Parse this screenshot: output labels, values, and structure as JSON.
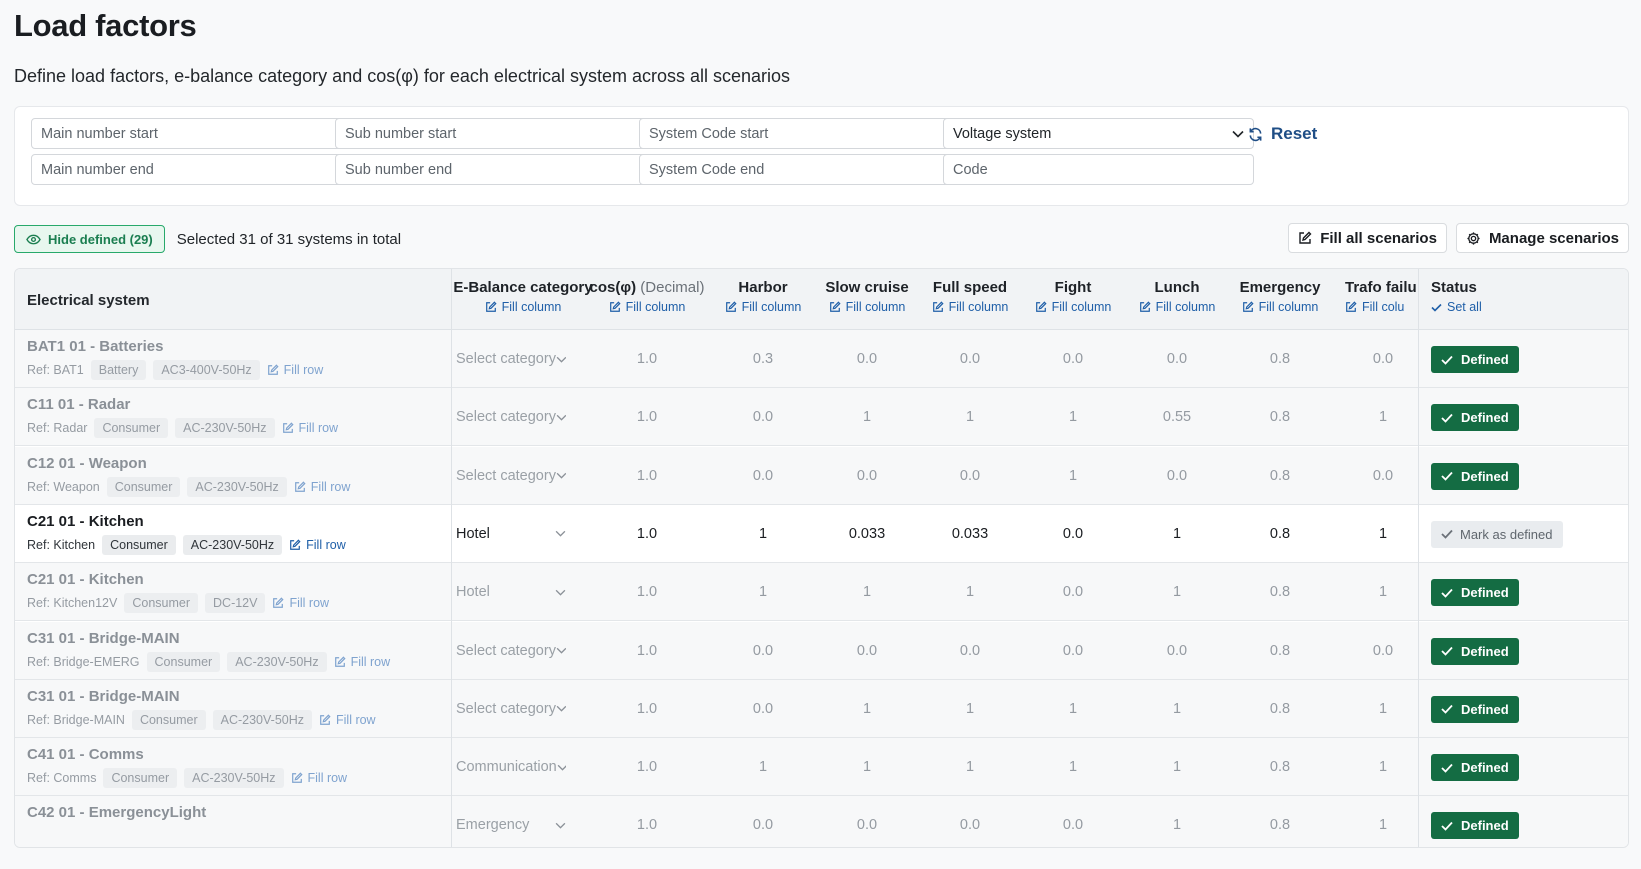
{
  "page": {
    "title": "Load factors",
    "subtitle": "Define load factors, e-balance category and cos(φ) for each electrical system across all scenarios"
  },
  "filters": {
    "main_start": "Main number start",
    "sub_start": "Sub number start",
    "code_start": "System Code start",
    "voltage": "Voltage system",
    "main_end": "Main number end",
    "sub_end": "Sub number end",
    "code_end": "System Code end",
    "code": "Code",
    "reset": "Reset"
  },
  "toolbar": {
    "hide_defined": "Hide defined (29)",
    "selection": "Selected 31 of 31 systems in total",
    "fill_all": "Fill all scenarios",
    "manage": "Manage scenarios"
  },
  "table": {
    "system_header": "Electrical system",
    "columns": [
      {
        "label": "E-Balance category",
        "action": "Fill column"
      },
      {
        "label": "cos(φ)",
        "muted": "(Decimal)",
        "action": "Fill column"
      },
      {
        "label": "Harbor",
        "action": "Fill column"
      },
      {
        "label": "Slow cruise",
        "action": "Fill column"
      },
      {
        "label": "Full speed",
        "action": "Fill column"
      },
      {
        "label": "Fight",
        "action": "Fill column"
      },
      {
        "label": "Lunch",
        "action": "Fill column"
      },
      {
        "label": "Emergency",
        "action": "Fill column"
      },
      {
        "label": "Trafo failu",
        "action": "Fill colu"
      }
    ],
    "status_header": "Status",
    "status_action": "Set all",
    "fill_row": "Fill row",
    "rows": [
      {
        "name": "BAT1 01 - Batteries",
        "ref": "Ref: BAT1",
        "type": "Battery",
        "voltage": "AC3-400V-50Hz",
        "category": "Select category",
        "cos": "1.0",
        "v": [
          "0.3",
          "0.0",
          "0.0",
          "0.0",
          "0.0",
          "0.8",
          "0.0"
        ],
        "status": "Defined"
      },
      {
        "name": "C11 01 - Radar",
        "ref": "Ref: Radar",
        "type": "Consumer",
        "voltage": "AC-230V-50Hz",
        "category": "Select category",
        "cos": "1.0",
        "v": [
          "0.0",
          "1",
          "1",
          "1",
          "0.55",
          "0.8",
          "1"
        ],
        "status": "Defined"
      },
      {
        "name": "C12 01 - Weapon",
        "ref": "Ref: Weapon",
        "type": "Consumer",
        "voltage": "AC-230V-50Hz",
        "category": "Select category",
        "cos": "1.0",
        "v": [
          "0.0",
          "0.0",
          "0.0",
          "1",
          "0.0",
          "0.8",
          "0.0"
        ],
        "status": "Defined"
      },
      {
        "name": "C21 01 - Kitchen",
        "ref": "Ref: Kitchen",
        "type": "Consumer",
        "voltage": "AC-230V-50Hz",
        "category": "Hotel",
        "cos": "1.0",
        "v": [
          "1",
          "0.033",
          "0.033",
          "0.0",
          "1",
          "0.8",
          "1"
        ],
        "status": "Mark as defined"
      },
      {
        "name": "C21 01 - Kitchen",
        "ref": "Ref: Kitchen12V",
        "type": "Consumer",
        "voltage": "DC-12V",
        "category": "Hotel",
        "cos": "1.0",
        "v": [
          "1",
          "1",
          "1",
          "0.0",
          "1",
          "0.8",
          "1"
        ],
        "status": "Defined"
      },
      {
        "name": "C31 01 - Bridge-MAIN",
        "ref": "Ref: Bridge-EMERG",
        "type": "Consumer",
        "voltage": "AC-230V-50Hz",
        "category": "Select category",
        "cos": "1.0",
        "v": [
          "0.0",
          "0.0",
          "0.0",
          "0.0",
          "0.0",
          "0.8",
          "0.0"
        ],
        "status": "Defined"
      },
      {
        "name": "C31 01 - Bridge-MAIN",
        "ref": "Ref: Bridge-MAIN",
        "type": "Consumer",
        "voltage": "AC-230V-50Hz",
        "category": "Select category",
        "cos": "1.0",
        "v": [
          "0.0",
          "1",
          "1",
          "1",
          "1",
          "0.8",
          "1"
        ],
        "status": "Defined"
      },
      {
        "name": "C41 01 - Comms",
        "ref": "Ref: Comms",
        "type": "Consumer",
        "voltage": "AC-230V-50Hz",
        "category": "Communication",
        "cos": "1.0",
        "v": [
          "1",
          "1",
          "1",
          "1",
          "1",
          "0.8",
          "1"
        ],
        "status": "Defined"
      },
      {
        "name": "C42 01 - EmergencyLight",
        "ref": "",
        "type": "",
        "voltage": "",
        "category": "Emergency",
        "cos": "1.0",
        "v": [
          "0.0",
          "0.0",
          "0.0",
          "0.0",
          "1",
          "0.8",
          "1"
        ],
        "status": "Defined"
      }
    ]
  },
  "colors": {
    "accent": "#1f5fa8",
    "success": "#146c43",
    "hide_border": "#28a96b"
  },
  "icons": {
    "reset": "refresh-icon",
    "hide": "eye-icon",
    "edit": "edit-icon",
    "gear": "gear-icon",
    "check": "check-icon",
    "chevron": "chevron-down-icon"
  }
}
